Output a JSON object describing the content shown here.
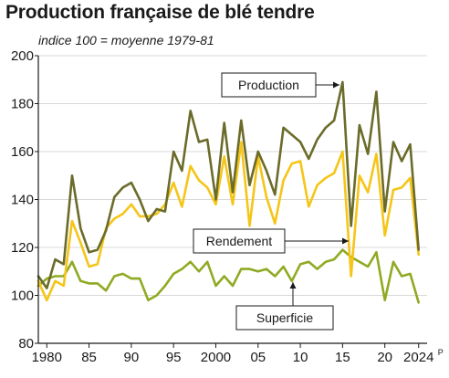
{
  "title": "Production française de blé tendre",
  "subtitle": "indice 100 =  moyenne 1979-81",
  "chart_data": {
    "type": "line",
    "x": [
      1979,
      1980,
      1981,
      1982,
      1983,
      1984,
      1985,
      1986,
      1987,
      1988,
      1989,
      1990,
      1991,
      1992,
      1993,
      1994,
      1995,
      1996,
      1997,
      1998,
      1999,
      2000,
      2001,
      2002,
      2003,
      2004,
      2005,
      2006,
      2007,
      2008,
      2009,
      2010,
      2011,
      2012,
      2013,
      2014,
      2015,
      2016,
      2017,
      2018,
      2019,
      2020,
      2021,
      2022,
      2023,
      2024
    ],
    "series": [
      {
        "name": "Production",
        "color": "#6b6b2a",
        "values": [
          108,
          103,
          115,
          113,
          150,
          128,
          118,
          119,
          127,
          141,
          145,
          147,
          140,
          131,
          136,
          135,
          160,
          152,
          177,
          164,
          165,
          140,
          172,
          143,
          173,
          146,
          160,
          152,
          142,
          170,
          167,
          164,
          157,
          165,
          170,
          173,
          189,
          129,
          171,
          159,
          185,
          135,
          164,
          156,
          163,
          119
        ]
      },
      {
        "name": "Rendement",
        "color": "#f5c518",
        "values": [
          106,
          98,
          106,
          104,
          131,
          122,
          112,
          113,
          128,
          132,
          134,
          138,
          133,
          133,
          134,
          138,
          147,
          137,
          154,
          148,
          145,
          138,
          158,
          138,
          164,
          129,
          158,
          141,
          130,
          148,
          155,
          156,
          137,
          146,
          149,
          151,
          160,
          108,
          150,
          143,
          159,
          125,
          144,
          145,
          149,
          117
        ]
      },
      {
        "name": "Superficie",
        "color": "#8faa22",
        "values": [
          104,
          107,
          108,
          108,
          114,
          106,
          105,
          105,
          102,
          108,
          109,
          107,
          107,
          98,
          100,
          104,
          109,
          111,
          114,
          110,
          114,
          104,
          108,
          104,
          111,
          111,
          110,
          111,
          108,
          112,
          106,
          113,
          114,
          111,
          114,
          115,
          119,
          116,
          114,
          112,
          118,
          98,
          114,
          108,
          109,
          97
        ]
      }
    ],
    "xticks": [
      1980,
      1985,
      1990,
      1995,
      2000,
      2005,
      2010,
      2015,
      2020,
      2024
    ],
    "xtick_labels": [
      "1980",
      "85",
      "90",
      "95",
      "2000",
      "05",
      "10",
      "15",
      "20",
      "2024"
    ],
    "xtick_suffix": "P",
    "yticks": [
      80,
      100,
      120,
      140,
      160,
      180,
      200
    ],
    "ylim": [
      80,
      200
    ],
    "xlim": [
      1979,
      2025
    ],
    "grid": "horizontal",
    "annotations": [
      "Production",
      "Rendement",
      "Superficie"
    ]
  }
}
